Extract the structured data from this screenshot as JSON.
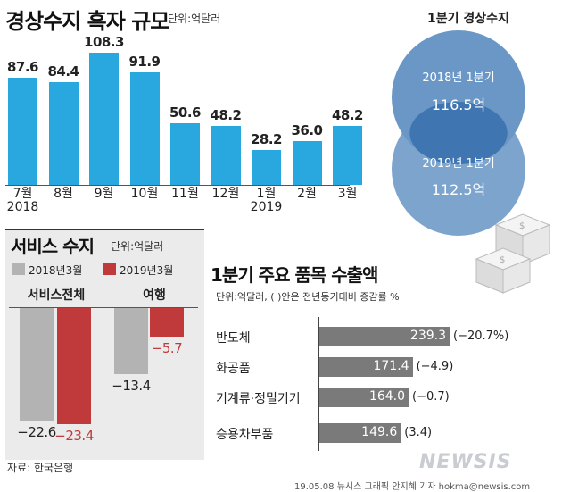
{
  "current_account": {
    "title": "경상수지 흑자 규모",
    "unit": "단위:억달러"
  },
  "quarter_compare": {
    "title": "1분기 경상수지",
    "items": [
      {
        "label": "2018년 1분기",
        "value": "116.5억"
      },
      {
        "label": "2019년 1분기",
        "value": "112.5억"
      }
    ]
  },
  "services": {
    "title": "서비스 수지",
    "unit": "단위:억달러",
    "legend": [
      "2018년3월",
      "2019년3월"
    ],
    "categories": [
      "서비스전체",
      "여행"
    ]
  },
  "exports": {
    "title": "1분기 주요 품목 수출액",
    "subtitle": "단위:억달러, ( )안은 전년동기대비 증감률 %"
  },
  "footer": {
    "source": "자료: 한국은행",
    "credit": "19.05.08 뉴시스 그래픽 안지혜 기자 hokma@newsis.com",
    "logo": "NEWSIS"
  },
  "chart_data": [
    {
      "type": "bar",
      "title": "경상수지 흑자 규모",
      "categories": [
        "7월",
        "8월",
        "9월",
        "10월",
        "11월",
        "12월",
        "1월",
        "2월",
        "3월"
      ],
      "year_labels": {
        "7월": "2018",
        "1월": "2019"
      },
      "values": [
        87.6,
        84.4,
        108.3,
        91.9,
        50.6,
        48.2,
        28.2,
        36.0,
        48.2
      ],
      "value_labels": [
        "87.6",
        "84.4",
        "108.3",
        "91.9",
        "50.6",
        "48.2",
        "28.2",
        "36.0",
        "48.2"
      ],
      "color": "#29a8e0",
      "ylim": [
        0,
        110
      ]
    },
    {
      "type": "bar",
      "title": "서비스 수지",
      "categories": [
        "서비스전체",
        "여행"
      ],
      "series": [
        {
          "name": "2018년3월",
          "values": [
            -22.6,
            -13.4
          ],
          "labels": [
            "−22.6",
            "−13.4"
          ],
          "color": "#b3b3b3"
        },
        {
          "name": "2019년3월",
          "values": [
            -23.4,
            -5.7
          ],
          "labels": [
            "−23.4",
            "−5.7"
          ],
          "color": "#c0393b"
        }
      ],
      "ylim": [
        -25,
        0
      ]
    },
    {
      "type": "bar",
      "title": "1분기 주요 품목 수출액",
      "orientation": "horizontal",
      "categories": [
        "반도체",
        "화공품",
        "기계류·정밀기기",
        "승용차부품"
      ],
      "values": [
        239.3,
        171.4,
        164.0,
        149.6
      ],
      "value_labels": [
        "239.3",
        "171.4",
        "164.0",
        "149.6"
      ],
      "change_labels": [
        "(−20.7%)",
        "(−4.9)",
        "(−0.7)",
        "(3.4)"
      ],
      "color": "#7a7a7a",
      "xlim": [
        0,
        239.3
      ]
    }
  ]
}
